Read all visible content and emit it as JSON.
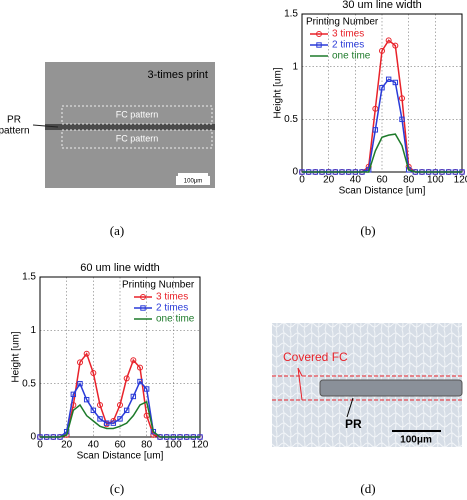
{
  "chart_data": [
    {
      "type": "line",
      "title": "30 um line width",
      "xlabel": "Scan Distance [um]",
      "ylabel": "Height [um]",
      "legend_title": "Printing Number",
      "legend": "upper left",
      "grid": true,
      "xlim": [
        0,
        120
      ],
      "xticks": [
        0,
        20,
        40,
        60,
        80,
        100,
        120
      ],
      "ylim": [
        0,
        1.5
      ],
      "yticks": [
        0,
        0.5,
        1,
        1.5
      ],
      "x": [
        0,
        5,
        10,
        15,
        20,
        25,
        30,
        35,
        40,
        45,
        50,
        55,
        60,
        65,
        70,
        75,
        80,
        85,
        90,
        95,
        100,
        105,
        110,
        115,
        120
      ],
      "series": [
        {
          "name": "3 times",
          "color": "#e8222a",
          "marker": "circle",
          "values": [
            0,
            0,
            0,
            0,
            0,
            0,
            0,
            0,
            0,
            0,
            0.05,
            0.6,
            1.15,
            1.25,
            1.2,
            0.7,
            0.05,
            0,
            0,
            0,
            0,
            0,
            0,
            0,
            0
          ]
        },
        {
          "name": "2 times",
          "color": "#2a3bd8",
          "marker": "square",
          "values": [
            0,
            0,
            0,
            0,
            0,
            0,
            0,
            0,
            0,
            0,
            0.02,
            0.4,
            0.8,
            0.88,
            0.85,
            0.5,
            0.02,
            0,
            0,
            0,
            0,
            0,
            0,
            0,
            0
          ]
        },
        {
          "name": "one time",
          "color": "#1d7a2a",
          "marker": "none",
          "values": [
            0,
            0,
            0,
            0,
            0,
            0,
            0,
            0,
            0,
            0,
            0,
            0.2,
            0.33,
            0.35,
            0.36,
            0.25,
            0.02,
            0,
            0,
            0,
            0,
            0,
            0,
            0,
            0
          ]
        }
      ]
    },
    {
      "type": "line",
      "title": "60 um line width",
      "xlabel": "Scan Distance [um]",
      "ylabel": "Height [um]",
      "legend_title": "Printing Number",
      "legend": "upper right",
      "grid": true,
      "xlim": [
        0,
        120
      ],
      "xticks": [
        0,
        20,
        40,
        60,
        80,
        100,
        120
      ],
      "ylim": [
        0,
        1.5
      ],
      "yticks": [
        0,
        0.5,
        1,
        1.5
      ],
      "x": [
        0,
        5,
        10,
        15,
        20,
        25,
        30,
        35,
        40,
        45,
        50,
        55,
        60,
        65,
        70,
        75,
        80,
        85,
        90,
        95,
        100,
        105,
        110,
        115,
        120
      ],
      "series": [
        {
          "name": "3 times",
          "color": "#e8222a",
          "marker": "circle",
          "values": [
            0,
            0,
            0,
            0,
            0.02,
            0.3,
            0.7,
            0.78,
            0.6,
            0.3,
            0.12,
            0.15,
            0.3,
            0.55,
            0.72,
            0.65,
            0.2,
            0.02,
            0,
            0,
            0,
            0,
            0,
            0,
            0
          ]
        },
        {
          "name": "2 times",
          "color": "#2a3bd8",
          "marker": "square",
          "values": [
            0,
            0,
            0,
            0,
            0.05,
            0.4,
            0.5,
            0.35,
            0.25,
            0.17,
            0.13,
            0.13,
            0.17,
            0.25,
            0.38,
            0.52,
            0.45,
            0.05,
            0,
            0,
            0,
            0,
            0,
            0,
            0
          ]
        },
        {
          "name": "one time",
          "color": "#1d7a2a",
          "marker": "none",
          "values": [
            0,
            0,
            0,
            0,
            0.02,
            0.25,
            0.3,
            0.2,
            0.15,
            0.1,
            0.08,
            0.08,
            0.1,
            0.13,
            0.2,
            0.3,
            0.33,
            0.05,
            0,
            0,
            0,
            0,
            0,
            0,
            0
          ]
        }
      ]
    }
  ],
  "panel_a": {
    "label": "(a)",
    "caption": "3-times print",
    "regions": [
      "FC pattern",
      "FC pattern"
    ],
    "pointer": [
      "PR",
      "pattern"
    ],
    "scale_bar": "100μm"
  },
  "panel_b": {
    "label": "(b)"
  },
  "panel_c": {
    "label": "(c)"
  },
  "panel_d": {
    "label": "(d)",
    "region": "Covered FC",
    "pointer": "PR",
    "scale_bar": "100μm"
  }
}
